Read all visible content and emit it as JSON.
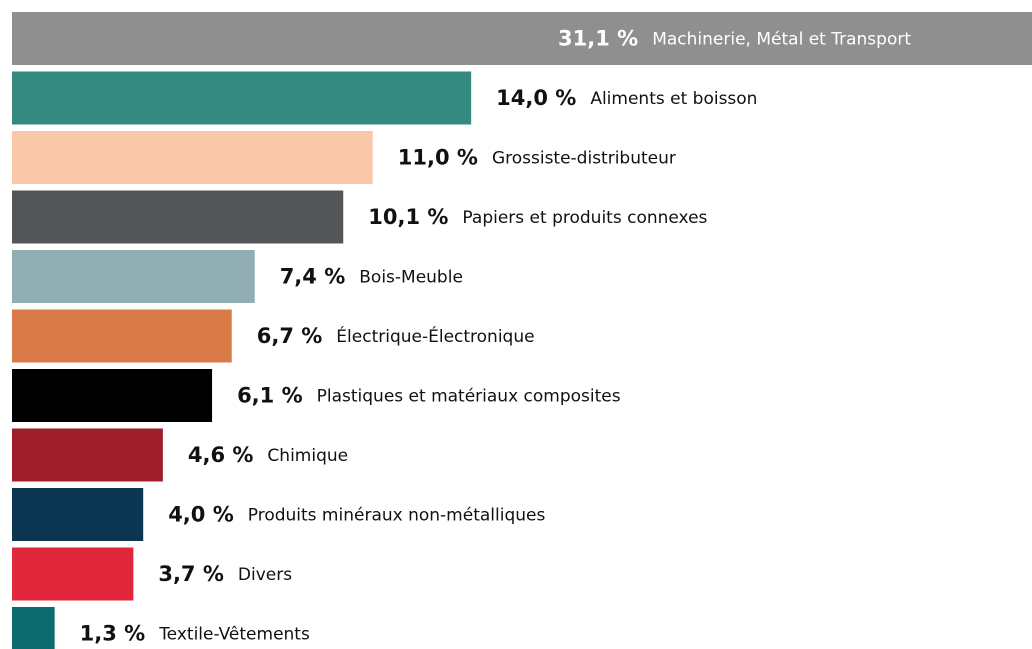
{
  "chart_data": {
    "type": "bar",
    "orientation": "horizontal",
    "categories": [
      "Machinerie, Métal et Transport",
      "Aliments et boisson",
      "Grossiste-distributeur",
      "Papiers et produits connexes",
      "Bois-Meuble",
      "Électrique-Électronique",
      "Plastiques et matériaux composites",
      "Chimique",
      "Produits minéraux non-métalliques",
      "Divers",
      "Textile-Vêtements"
    ],
    "values": [
      31.1,
      14.0,
      11.0,
      10.1,
      7.4,
      6.7,
      6.1,
      4.6,
      4.0,
      3.7,
      1.3
    ],
    "value_labels": [
      "31,1 %",
      "14,0 %",
      "11,0 %",
      "10,1 %",
      "7,4 %",
      "6,7 %",
      "6,1 %",
      "4,6 %",
      "4,0 %",
      "3,7 %",
      "1,3 %"
    ],
    "colors": [
      "#8f8f8f",
      "#348a7f",
      "#f8c8a8",
      "#545557",
      "#90aeb3",
      "#d97b46",
      "#000000",
      "#9e1f29",
      "#0b3550",
      "#e0283a",
      "#0c6b6e"
    ]
  }
}
